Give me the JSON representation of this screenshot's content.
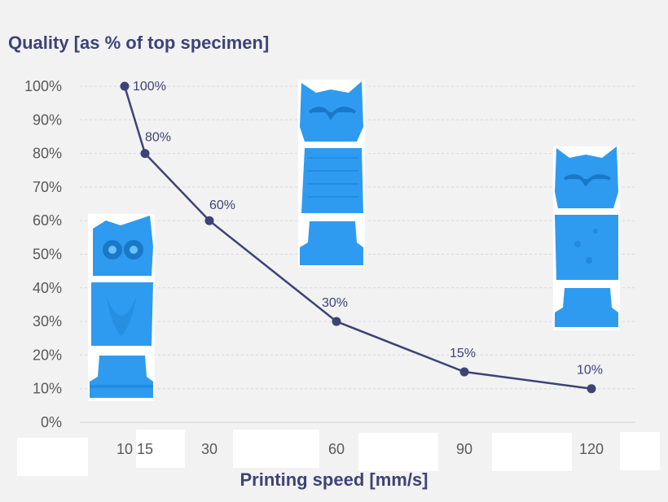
{
  "chart_data": {
    "type": "line",
    "title": "Quality [as % of top specimen]",
    "xlabel": "Printing speed [mm/s]",
    "ylabel": "",
    "x": [
      10,
      15,
      30,
      60,
      90,
      120
    ],
    "x_tick_labels": [
      "10",
      "15",
      "30",
      "60",
      "90",
      "120"
    ],
    "series": [
      {
        "values": [
          100,
          80,
          60,
          30,
          15,
          10
        ]
      }
    ],
    "data_labels": [
      "100%",
      "80%",
      "60%",
      "30%",
      "15%",
      "10%"
    ],
    "y_tick_labels": [
      "0%",
      "10%",
      "20%",
      "30%",
      "40%",
      "50%",
      "60%",
      "70%",
      "80%",
      "90%",
      "100%"
    ],
    "ylim": [
      0,
      100
    ],
    "grid": true,
    "legend": "none",
    "colors": {
      "line": "#3d4377",
      "title": "#3d4377",
      "tick": "#595959",
      "owl": "#2e9bf0"
    }
  },
  "images": [
    {
      "icon": "owl-print-slow-icon"
    },
    {
      "icon": "owl-print-medium-icon"
    },
    {
      "icon": "owl-print-fast-icon"
    }
  ]
}
